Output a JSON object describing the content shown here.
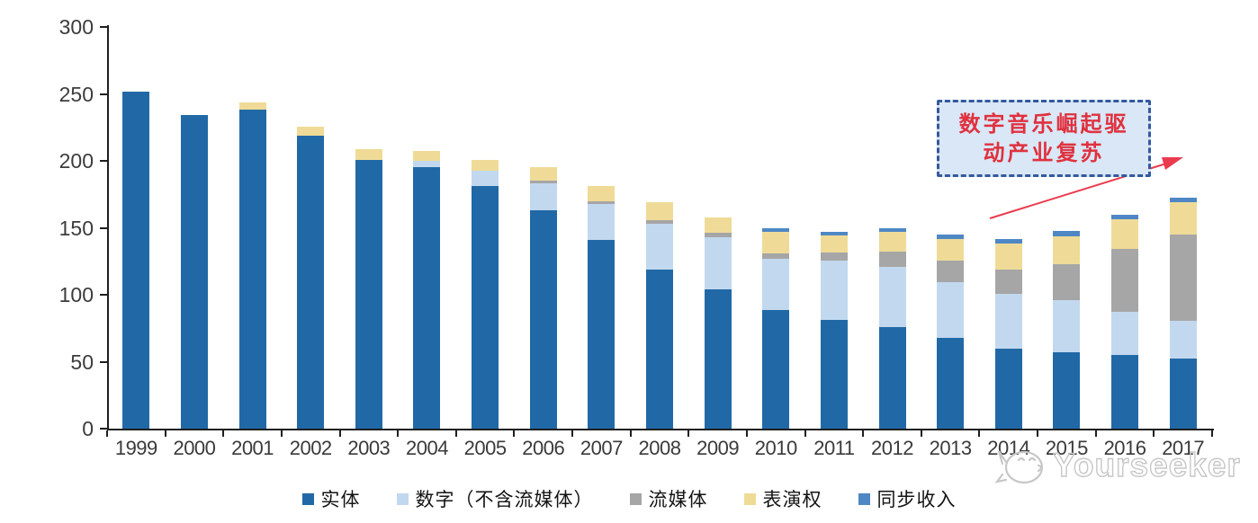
{
  "chart_data": {
    "type": "bar",
    "stacked": true,
    "title": "",
    "xlabel": "",
    "ylabel": "",
    "categories": [
      "1999",
      "2000",
      "2001",
      "2002",
      "2003",
      "2004",
      "2005",
      "2006",
      "2007",
      "2008",
      "2009",
      "2010",
      "2011",
      "2012",
      "2013",
      "2014",
      "2015",
      "2016",
      "2017"
    ],
    "series": [
      {
        "name": "实体",
        "color": "#2169a6",
        "values": [
          252,
          234.5,
          238,
          219,
          201,
          195,
          181,
          163,
          141,
          119,
          104,
          88.5,
          81.5,
          76,
          67.5,
          60,
          57,
          55,
          52.5
        ]
      },
      {
        "name": "数字（不含流媒体）",
        "color": "#c2d8ee",
        "values": [
          0,
          0,
          0,
          0,
          0,
          5,
          11.5,
          20,
          27,
          34,
          39,
          38.5,
          44,
          45,
          42,
          40.5,
          39,
          32.5,
          28
        ]
      },
      {
        "name": "流媒体",
        "color": "#a6a6a6",
        "values": [
          0,
          0,
          0,
          0,
          0,
          0,
          0,
          2,
          1.5,
          2.5,
          3,
          4,
          6,
          11,
          16,
          18.5,
          27,
          47,
          64.5
        ]
      },
      {
        "name": "表演权",
        "color": "#efdb97",
        "values": [
          0,
          0,
          5.5,
          6.5,
          8,
          7.5,
          8.5,
          10,
          12,
          13.5,
          12,
          16,
          13,
          15,
          16,
          19,
          20.5,
          22,
          24
        ]
      },
      {
        "name": "同步收入",
        "color": "#4f87c5",
        "values": [
          0,
          0,
          0,
          0,
          0,
          0,
          0,
          0,
          0,
          0,
          0,
          2.5,
          2.5,
          3,
          3.5,
          3.5,
          4.5,
          3.5,
          3.5
        ]
      }
    ],
    "ylim": [
      0,
      300
    ],
    "yticks": [
      0,
      50,
      100,
      150,
      200,
      250,
      300
    ],
    "grid": false,
    "legend_position": "bottom"
  },
  "annotation": {
    "line1": "数字音乐崛起驱",
    "line2": "动产业复苏"
  },
  "watermark": {
    "label": "Yourseeker",
    "logo": "cat-logo"
  },
  "colors": {
    "axis": "#1f1f1f",
    "annotation_border": "#34599e",
    "annotation_bg": "#d9e7f6",
    "annotation_text": "#e0313e",
    "arrow": "#ea3b4e",
    "watermark": "#c7c7c7"
  }
}
